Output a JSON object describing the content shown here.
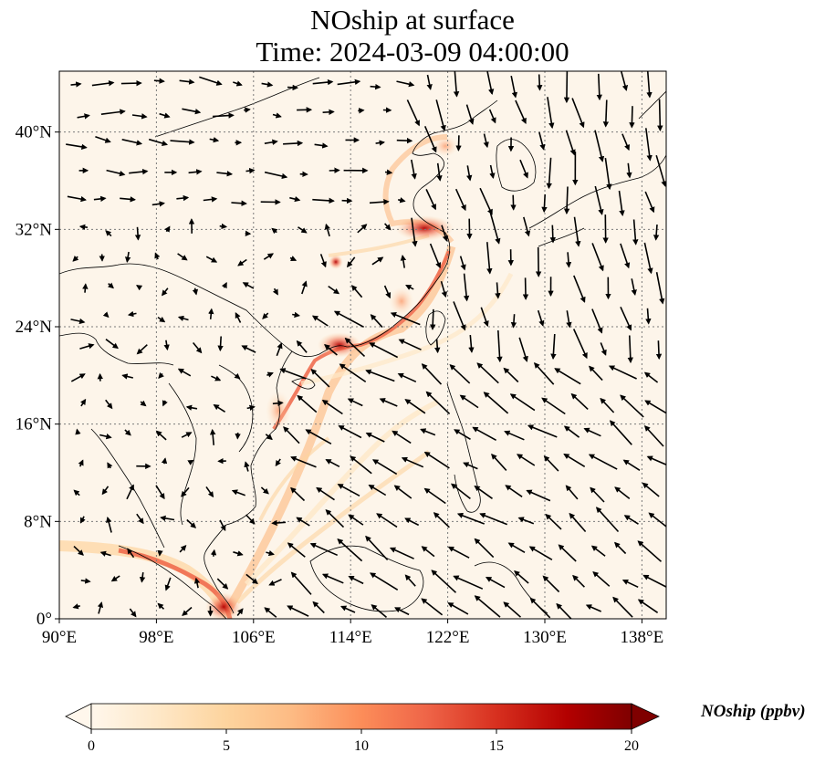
{
  "title": {
    "line1": "NOship at surface",
    "line2": "Time: 2024-03-09 04:00:00"
  },
  "map": {
    "extent": {
      "lon": [
        90,
        140
      ],
      "lat": [
        0,
        45
      ]
    },
    "lon_ticks": [
      {
        "value": 90,
        "label": "90°E"
      },
      {
        "value": 98,
        "label": "98°E"
      },
      {
        "value": 106,
        "label": "106°E"
      },
      {
        "value": 114,
        "label": "114°E"
      },
      {
        "value": 122,
        "label": "122°E"
      },
      {
        "value": 130,
        "label": "130°E"
      },
      {
        "value": 138,
        "label": "138°E"
      }
    ],
    "lat_ticks": [
      {
        "value": 0,
        "label": "0°"
      },
      {
        "value": 8,
        "label": "8°N"
      },
      {
        "value": 16,
        "label": "16°N"
      },
      {
        "value": 24,
        "label": "24°N"
      },
      {
        "value": 32,
        "label": "32°N"
      },
      {
        "value": 40,
        "label": "40°N"
      }
    ],
    "gridlines": true,
    "background_color": "#fdf5ea",
    "coastline_color": "#000000"
  },
  "colorbar": {
    "label": "NOship (ppbv)",
    "min": 0,
    "max": 20,
    "ticks": [
      0,
      5,
      10,
      15,
      20
    ],
    "extend": "both",
    "colormap": "OrRd",
    "colors": [
      "#fff7ec",
      "#fee8c8",
      "#fdd49e",
      "#fdbb84",
      "#fc8d59",
      "#ef6548",
      "#d7301f",
      "#b30000",
      "#7f0000"
    ]
  }
}
